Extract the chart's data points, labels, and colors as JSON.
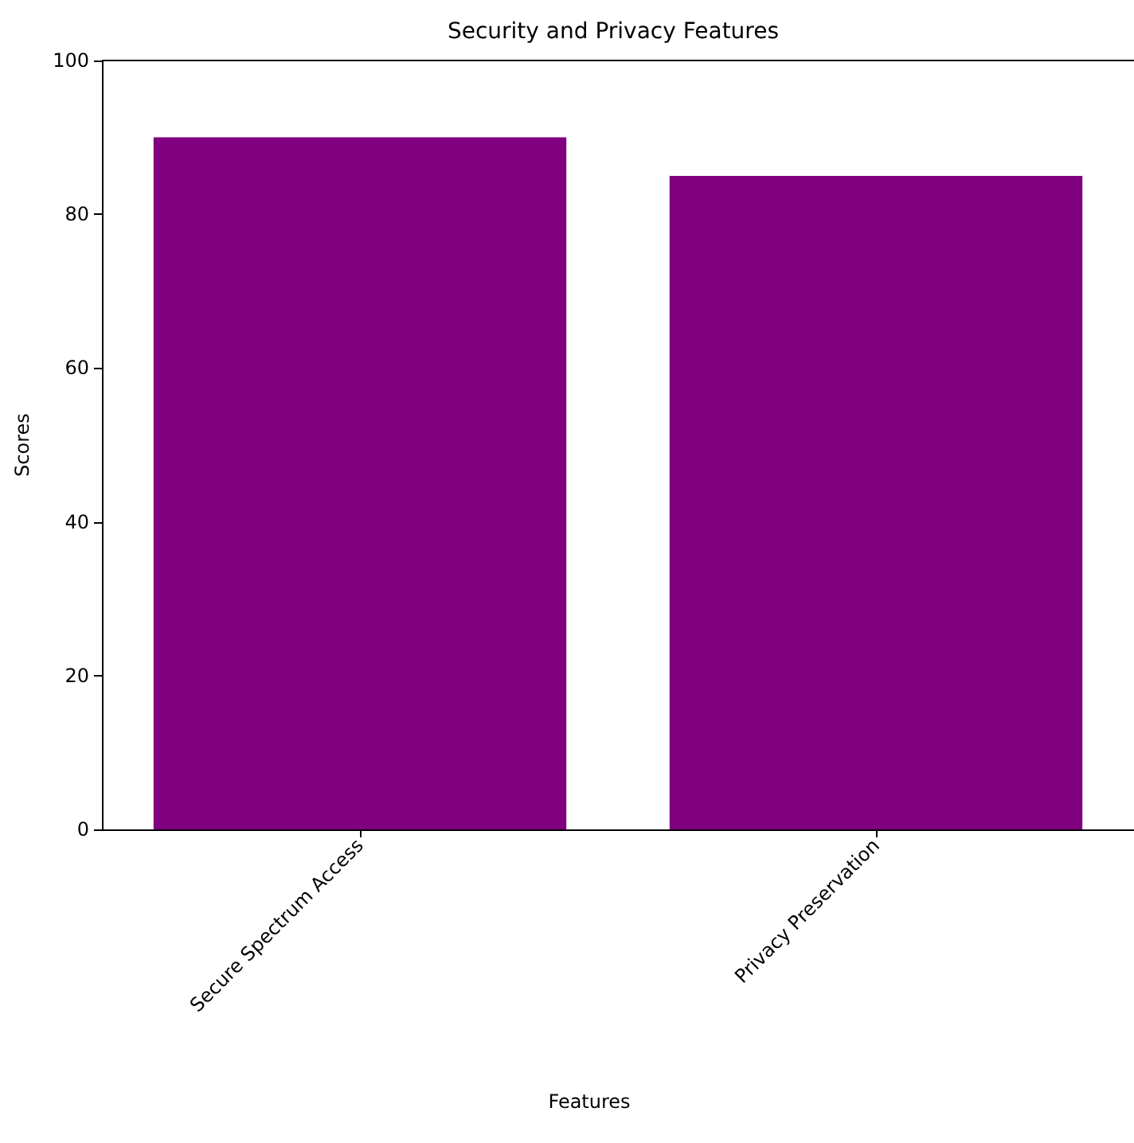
{
  "chart_data": {
    "type": "bar",
    "title": "Security and Privacy Features",
    "xlabel": "Features",
    "ylabel": "Scores",
    "categories": [
      "Secure Spectrum Access",
      "Privacy Preservation"
    ],
    "values": [
      90,
      85
    ],
    "color": "#800080",
    "ylim": [
      0,
      100
    ],
    "yticks": [
      0,
      20,
      40,
      60,
      80,
      100
    ],
    "grid": false
  }
}
